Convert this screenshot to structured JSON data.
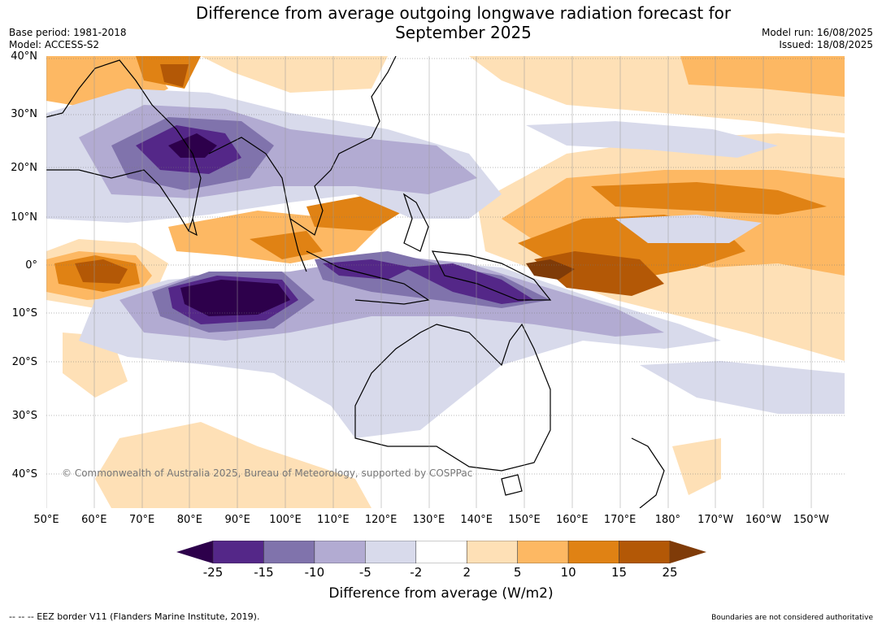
{
  "title": {
    "line1": "Difference from average outgoing longwave radiation forecast for",
    "line2": "September 2025"
  },
  "meta_left": {
    "base_period": "Base period: 1981-2018",
    "model": "Model: ACCESS-S2"
  },
  "meta_right": {
    "model_run": "Model run: 16/08/2025",
    "issued": "Issued: 18/08/2025"
  },
  "lat_labels": [
    "40°N",
    "30°N",
    "20°N",
    "10°N",
    "0°",
    "10°S",
    "20°S",
    "30°S",
    "40°S"
  ],
  "lon_labels": [
    "50°E",
    "60°E",
    "70°E",
    "80°E",
    "90°E",
    "100°E",
    "110°E",
    "120°E",
    "130°E",
    "140°E",
    "150°E",
    "160°E",
    "170°E",
    "180°",
    "170°W",
    "160°W",
    "150°W"
  ],
  "copyright": "© Commonwealth of Australia 2025, Bureau of Meteorology, supported by COSPPac",
  "legend": {
    "ticks": [
      "-25",
      "-15",
      "-10",
      "-5",
      "-2",
      "2",
      "5",
      "10",
      "15",
      "25"
    ],
    "colors": [
      "#2d004b",
      "#542788",
      "#8073ac",
      "#b2abd2",
      "#d8daeb",
      "#ffffff",
      "#fee0b6",
      "#fdb863",
      "#e08214",
      "#b35806",
      "#7f3b08"
    ],
    "label": "Difference from average (W/m2)"
  },
  "footer": {
    "eez_note": "--  --  -- EEZ border V11 (Flanders Marine Institute, 2019).",
    "disclaimer": "Boundaries are not considered authoritative"
  }
}
